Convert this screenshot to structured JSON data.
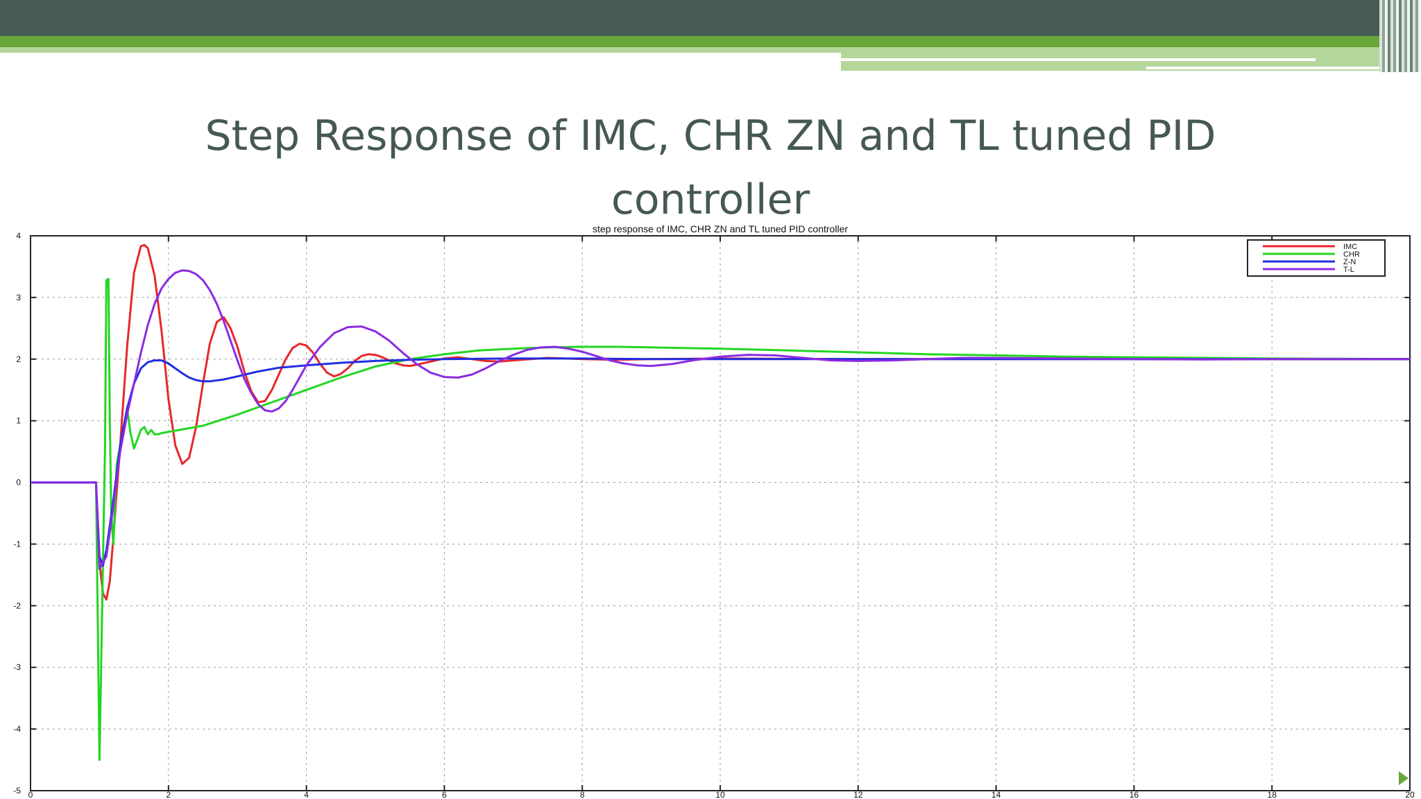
{
  "slide": {
    "title": "Step Response of IMC, CHR ZN and TL tuned PID controller"
  },
  "colors": {
    "header_dark": "#475c52",
    "header_green": "#6aa73a",
    "header_light": "#b5d69b",
    "title_text": "#46594f"
  },
  "chart_data": {
    "type": "line",
    "title": "step response of IMC, CHR ZN and TL tuned PID controller",
    "xlabel": "",
    "ylabel": "",
    "xlim": [
      0,
      20
    ],
    "ylim": [
      -5,
      4
    ],
    "xticks": [
      0,
      2,
      4,
      6,
      8,
      10,
      12,
      14,
      16,
      18,
      20
    ],
    "yticks": [
      -5,
      -4,
      -3,
      -2,
      -1,
      0,
      1,
      2,
      3,
      4
    ],
    "grid": true,
    "legend_position": "top-right",
    "series": [
      {
        "name": "IMC",
        "color": "#e8262a",
        "x": [
          0,
          0.95,
          1.0,
          1.05,
          1.1,
          1.15,
          1.2,
          1.3,
          1.4,
          1.5,
          1.6,
          1.65,
          1.7,
          1.8,
          1.9,
          2.0,
          2.1,
          2.2,
          2.3,
          2.4,
          2.5,
          2.6,
          2.7,
          2.8,
          2.9,
          3.0,
          3.1,
          3.2,
          3.3,
          3.4,
          3.5,
          3.6,
          3.7,
          3.8,
          3.9,
          4.0,
          4.1,
          4.2,
          4.3,
          4.4,
          4.5,
          4.6,
          4.7,
          4.8,
          4.9,
          5.0,
          5.1,
          5.2,
          5.3,
          5.4,
          5.5,
          5.6,
          5.8,
          6.0,
          6.2,
          6.4,
          6.6,
          6.8,
          7.0,
          7.5,
          8.0,
          8.5,
          9.0,
          10.0,
          12.0,
          14.0,
          16.0,
          18.0,
          20.0
        ],
        "y": [
          0,
          0,
          -1.3,
          -1.8,
          -1.9,
          -1.6,
          -0.9,
          0.6,
          2.2,
          3.4,
          3.83,
          3.85,
          3.8,
          3.35,
          2.45,
          1.35,
          0.6,
          0.3,
          0.4,
          0.9,
          1.6,
          2.25,
          2.6,
          2.68,
          2.5,
          2.2,
          1.8,
          1.48,
          1.3,
          1.32,
          1.5,
          1.75,
          2.0,
          2.18,
          2.25,
          2.22,
          2.1,
          1.92,
          1.78,
          1.72,
          1.76,
          1.85,
          1.97,
          2.05,
          2.08,
          2.07,
          2.03,
          1.98,
          1.93,
          1.9,
          1.89,
          1.91,
          1.96,
          2.01,
          2.03,
          2.0,
          1.97,
          1.96,
          1.98,
          2.02,
          2.0,
          1.99,
          2.0,
          2.01,
          2.0,
          2.0,
          2.0,
          2.0,
          2.0
        ]
      },
      {
        "name": "CHR",
        "color": "#22d622",
        "x": [
          0,
          0.95,
          1.0,
          1.05,
          1.08,
          1.1,
          1.13,
          1.15,
          1.17,
          1.2,
          1.22,
          1.25,
          1.3,
          1.35,
          1.4,
          1.45,
          1.5,
          1.55,
          1.6,
          1.65,
          1.7,
          1.75,
          1.8,
          1.85,
          1.9,
          2.0,
          2.2,
          2.5,
          3.0,
          3.5,
          4.0,
          4.5,
          5.0,
          5.5,
          6.0,
          6.5,
          7.0,
          7.5,
          8.0,
          8.5,
          9.0,
          10.0,
          11.0,
          12.0,
          13.0,
          14.0,
          15.0,
          16.0,
          17.0,
          18.0,
          19.0,
          20.0
        ],
        "y": [
          0,
          0,
          -4.5,
          -1.3,
          0.6,
          3.28,
          3.3,
          1.0,
          -0.5,
          -1.0,
          -0.5,
          0.3,
          0.6,
          0.9,
          1.2,
          0.8,
          0.55,
          0.7,
          0.85,
          0.9,
          0.78,
          0.85,
          0.78,
          0.78,
          0.8,
          0.82,
          0.86,
          0.92,
          1.1,
          1.3,
          1.5,
          1.7,
          1.88,
          2.0,
          2.08,
          2.14,
          2.17,
          2.19,
          2.2,
          2.2,
          2.19,
          2.17,
          2.14,
          2.11,
          2.08,
          2.06,
          2.04,
          2.03,
          2.02,
          2.01,
          2.005,
          2.0
        ]
      },
      {
        "name": "Z-N",
        "color": "#1f2ee0",
        "x": [
          0,
          0.95,
          1.0,
          1.05,
          1.1,
          1.2,
          1.3,
          1.4,
          1.5,
          1.6,
          1.7,
          1.8,
          1.9,
          2.0,
          2.1,
          2.2,
          2.3,
          2.4,
          2.5,
          2.6,
          2.8,
          3.0,
          3.3,
          3.6,
          4.0,
          4.5,
          5.0,
          5.5,
          6.0,
          7.0,
          8.0,
          9.0,
          10.0,
          12.0,
          14.0,
          16.0,
          18.0,
          20.0
        ],
        "y": [
          0,
          0,
          -1.2,
          -1.35,
          -1.1,
          -0.3,
          0.6,
          1.2,
          1.6,
          1.85,
          1.95,
          1.98,
          1.98,
          1.93,
          1.85,
          1.77,
          1.7,
          1.66,
          1.64,
          1.64,
          1.67,
          1.72,
          1.8,
          1.86,
          1.9,
          1.94,
          1.97,
          1.99,
          2.0,
          2.01,
          2.01,
          2.0,
          2.0,
          2.0,
          2.0,
          2.0,
          2.0,
          2.0
        ]
      },
      {
        "name": "T-L",
        "color": "#8a2be2",
        "x": [
          0,
          0.95,
          1.0,
          1.1,
          1.2,
          1.3,
          1.4,
          1.5,
          1.6,
          1.7,
          1.8,
          1.9,
          2.0,
          2.1,
          2.2,
          2.3,
          2.4,
          2.5,
          2.6,
          2.7,
          2.8,
          2.9,
          3.0,
          3.1,
          3.2,
          3.3,
          3.4,
          3.5,
          3.6,
          3.7,
          3.8,
          3.9,
          4.0,
          4.2,
          4.4,
          4.6,
          4.8,
          5.0,
          5.2,
          5.3,
          5.4,
          5.6,
          5.8,
          6.0,
          6.2,
          6.4,
          6.6,
          6.8,
          7.0,
          7.2,
          7.4,
          7.6,
          7.8,
          8.0,
          8.2,
          8.4,
          8.6,
          8.8,
          9.0,
          9.3,
          9.6,
          10.0,
          10.4,
          10.8,
          11.2,
          11.6,
          12.0,
          12.5,
          13.0,
          13.5,
          14.0,
          15.0,
          16.0,
          17.0,
          18.0,
          20.0
        ],
        "y": [
          0,
          0,
          -1.4,
          -1.2,
          -0.4,
          0.5,
          1.1,
          1.6,
          2.1,
          2.55,
          2.9,
          3.15,
          3.3,
          3.4,
          3.44,
          3.43,
          3.38,
          3.28,
          3.12,
          2.9,
          2.62,
          2.3,
          1.98,
          1.68,
          1.45,
          1.27,
          1.17,
          1.15,
          1.2,
          1.32,
          1.5,
          1.7,
          1.9,
          2.2,
          2.42,
          2.52,
          2.53,
          2.45,
          2.3,
          2.2,
          2.1,
          1.92,
          1.78,
          1.71,
          1.7,
          1.75,
          1.85,
          1.97,
          2.07,
          2.15,
          2.19,
          2.2,
          2.17,
          2.12,
          2.05,
          1.98,
          1.93,
          1.9,
          1.89,
          1.92,
          1.98,
          2.04,
          2.07,
          2.06,
          2.02,
          1.98,
          1.97,
          1.98,
          2.0,
          2.02,
          2.02,
          2.01,
          2.0,
          1.995,
          2.0,
          2.0
        ]
      }
    ]
  }
}
